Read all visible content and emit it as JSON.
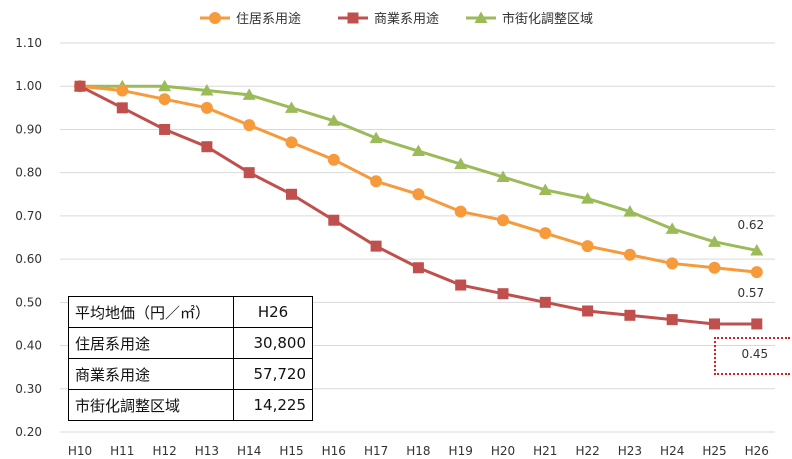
{
  "chart_data": {
    "type": "line",
    "categories": [
      "H10",
      "H11",
      "H12",
      "H13",
      "H14",
      "H15",
      "H16",
      "H17",
      "H18",
      "H19",
      "H20",
      "H21",
      "H22",
      "H23",
      "H24",
      "H25",
      "H26"
    ],
    "ylim": [
      0.2,
      1.1
    ],
    "yticks": [
      "0.20",
      "0.30",
      "0.40",
      "0.50",
      "0.60",
      "0.70",
      "0.80",
      "0.90",
      "1.00",
      "1.10"
    ],
    "grid": true,
    "legend_position": "top",
    "series": [
      {
        "name": "住居系用途",
        "color": "#F79A3B",
        "marker": "circle",
        "values": [
          1.0,
          0.99,
          0.97,
          0.95,
          0.91,
          0.87,
          0.83,
          0.78,
          0.75,
          0.71,
          0.69,
          0.66,
          0.63,
          0.61,
          0.59,
          0.58,
          0.57
        ],
        "end_label": "0.57"
      },
      {
        "name": "商業系用途",
        "color": "#C0504D",
        "marker": "square",
        "values": [
          1.0,
          0.95,
          0.9,
          0.86,
          0.8,
          0.75,
          0.69,
          0.63,
          0.58,
          0.54,
          0.52,
          0.5,
          0.48,
          0.47,
          0.46,
          0.45,
          0.45
        ],
        "end_label": "0.45"
      },
      {
        "name": "市街化調整区域",
        "color": "#9BBB59",
        "marker": "triangle",
        "values": [
          1.0,
          1.0,
          1.0,
          0.99,
          0.98,
          0.95,
          0.92,
          0.88,
          0.85,
          0.82,
          0.79,
          0.76,
          0.74,
          0.71,
          0.67,
          0.64,
          0.62
        ],
        "end_label": "0.62"
      }
    ]
  },
  "table": {
    "header": {
      "label": "平均地価（円／㎡）",
      "value": "H26"
    },
    "rows": [
      {
        "label": "住居系用途",
        "value": "30,800"
      },
      {
        "label": "商業系用途",
        "value": "57,720"
      },
      {
        "label": "市街化調整区域",
        "value": "14,225"
      }
    ]
  },
  "highlight_color": "#D62020"
}
